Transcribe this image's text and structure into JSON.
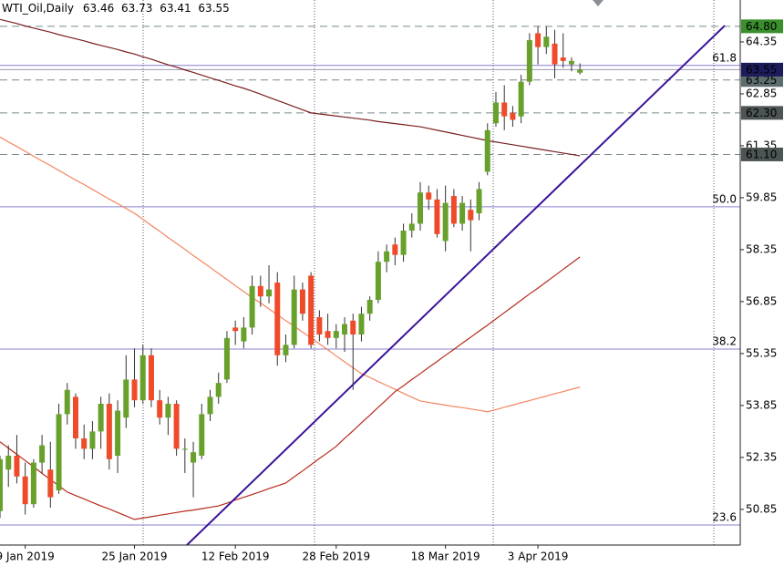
{
  "chart_data": {
    "type": "candlestick",
    "title": "WTI_Oil,Daily",
    "categories": [
      null,
      null,
      null,
      "9 Jan 2019",
      null,
      null,
      null,
      null,
      null,
      null,
      null,
      null,
      null,
      null,
      null,
      null,
      "25 Jan 2019",
      null,
      null,
      null,
      null,
      null,
      null,
      null,
      null,
      null,
      null,
      null,
      "12 Feb 2019",
      null,
      null,
      null,
      null,
      null,
      null,
      null,
      null,
      null,
      null,
      null,
      "28 Feb 2019",
      null,
      null,
      null,
      null,
      null,
      null,
      null,
      null,
      null,
      null,
      null,
      null,
      "18 Mar 2019",
      null,
      null,
      null,
      null,
      null,
      null,
      null,
      null,
      null,
      null,
      "3 Apr 2019",
      null,
      null,
      null,
      null,
      null
    ],
    "open": [
      50.8,
      52.0,
      52.4,
      51.8,
      51.0,
      52.2,
      52.0,
      51.4,
      53.6,
      54.1,
      52.9,
      52.6,
      53.1,
      53.9,
      52.4,
      53.5,
      54.6,
      54.0,
      55.3,
      54.0,
      53.5,
      53.9,
      52.6,
      52.2,
      52.4,
      53.6,
      54.1,
      54.6,
      56.1,
      55.7,
      56.1,
      57.3,
      57.0,
      57.4,
      55.3,
      55.6,
      57.2,
      57.6,
      56.4,
      56.0,
      55.8,
      55.9,
      56.3,
      55.9,
      56.5,
      56.9,
      58.0,
      58.5,
      58.2,
      58.9,
      59.1,
      60.0,
      59.8,
      58.6,
      59.9,
      59.1,
      59.5,
      59.4,
      60.6,
      62.0,
      62.6,
      62.3,
      62.2,
      63.2,
      64.6,
      64.2,
      64.3,
      63.9,
      63.7,
      63.46
    ],
    "high": [
      52.4,
      52.7,
      53.0,
      52.2,
      52.3,
      53.0,
      52.8,
      53.9,
      54.5,
      54.2,
      53.3,
      53.4,
      54.1,
      54.2,
      54.0,
      55.3,
      55.5,
      55.6,
      55.5,
      54.3,
      54.1,
      54.0,
      52.9,
      52.8,
      53.9,
      54.3,
      54.8,
      56.0,
      56.3,
      56.4,
      57.6,
      57.6,
      57.9,
      57.7,
      55.9,
      57.6,
      57.4,
      57.7,
      56.6,
      56.5,
      56.2,
      56.4,
      56.5,
      56.7,
      57.0,
      58.3,
      58.5,
      58.7,
      59.1,
      59.4,
      60.3,
      60.2,
      60.1,
      60.2,
      60.1,
      59.9,
      59.8,
      60.3,
      62.0,
      62.9,
      63.1,
      62.5,
      63.4,
      64.6,
      64.8,
      64.8,
      64.7,
      64.6,
      63.9,
      63.73
    ],
    "low": [
      50.6,
      51.5,
      51.6,
      50.7,
      50.9,
      51.9,
      50.9,
      51.3,
      53.3,
      52.6,
      52.3,
      52.3,
      52.6,
      52.0,
      51.9,
      53.2,
      53.8,
      53.9,
      53.8,
      53.3,
      53.0,
      52.4,
      51.9,
      51.2,
      52.3,
      53.4,
      53.9,
      54.5,
      55.6,
      55.5,
      55.9,
      56.7,
      56.8,
      55.0,
      55.1,
      55.5,
      56.3,
      55.5,
      55.7,
      55.6,
      55.5,
      55.4,
      54.3,
      55.7,
      56.3,
      56.8,
      57.7,
      57.9,
      58.0,
      58.7,
      58.9,
      59.5,
      58.7,
      58.3,
      59.0,
      58.9,
      58.3,
      59.2,
      60.5,
      61.9,
      61.8,
      61.9,
      62.0,
      63.1,
      63.7,
      64.0,
      63.3,
      63.6,
      63.5,
      63.41
    ],
    "close": [
      52.3,
      52.4,
      51.8,
      51.0,
      52.2,
      52.7,
      51.2,
      53.6,
      54.3,
      52.9,
      52.6,
      53.1,
      53.9,
      52.3,
      53.7,
      54.6,
      54.0,
      55.3,
      54.0,
      53.5,
      53.9,
      52.6,
      52.6,
      52.5,
      53.6,
      54.1,
      54.5,
      55.8,
      56.0,
      56.1,
      57.3,
      57.0,
      57.2,
      55.3,
      55.6,
      57.2,
      56.5,
      55.6,
      55.9,
      55.8,
      56.0,
      56.2,
      55.9,
      56.5,
      56.9,
      58.0,
      58.3,
      58.2,
      58.9,
      59.1,
      60.0,
      59.8,
      58.8,
      59.7,
      59.1,
      59.7,
      59.2,
      60.1,
      61.8,
      62.6,
      62.2,
      62.1,
      63.2,
      64.4,
      64.2,
      64.5,
      63.7,
      63.8,
      63.8,
      63.55
    ],
    "up_color": "#67a12c",
    "down_color": "#ef4b2a",
    "moving_averages": [
      {
        "color": "#7a1f1f",
        "values": [
          65.0,
          64.94,
          64.88,
          64.81,
          64.75,
          64.69,
          64.63,
          64.56,
          64.5,
          64.44,
          64.38,
          64.31,
          64.25,
          64.19,
          64.13,
          64.06,
          64.0,
          63.92,
          63.85,
          63.77,
          63.69,
          63.62,
          63.54,
          63.47,
          63.39,
          63.31,
          63.24,
          63.16,
          63.08,
          63.01,
          62.93,
          62.84,
          62.75,
          62.66,
          62.57,
          62.48,
          62.39,
          62.3,
          62.27,
          62.24,
          62.21,
          62.18,
          62.15,
          62.12,
          62.09,
          62.05,
          62.02,
          61.99,
          61.96,
          61.93,
          61.9,
          61.85,
          61.8,
          61.75,
          61.7,
          61.65,
          61.6,
          61.55,
          61.5,
          61.46,
          61.42,
          61.38,
          61.34,
          61.3,
          61.26,
          61.22,
          61.18,
          61.14,
          61.1,
          61.06
        ]
      },
      {
        "color": "#f4845f",
        "values": [
          61.6,
          61.46,
          61.33,
          61.19,
          61.05,
          60.91,
          60.78,
          60.64,
          60.5,
          60.36,
          60.23,
          60.09,
          59.95,
          59.81,
          59.68,
          59.54,
          59.4,
          59.23,
          59.05,
          58.88,
          58.7,
          58.53,
          58.36,
          58.18,
          58.01,
          57.84,
          57.66,
          57.49,
          57.31,
          57.14,
          56.97,
          56.81,
          56.64,
          56.47,
          56.3,
          56.14,
          55.97,
          55.8,
          55.63,
          55.46,
          55.28,
          55.11,
          54.94,
          54.77,
          54.66,
          54.54,
          54.43,
          54.32,
          54.2,
          54.09,
          53.98,
          53.94,
          53.9,
          53.86,
          53.82,
          53.79,
          53.75,
          53.71,
          53.67,
          53.73,
          53.8,
          53.86,
          53.93,
          53.99,
          54.06,
          54.12,
          54.19,
          54.25,
          54.32,
          54.38
        ]
      },
      {
        "color": "#b52a1c",
        "values": [
          52.8,
          52.62,
          52.44,
          52.26,
          52.08,
          51.89,
          51.71,
          51.53,
          51.35,
          51.25,
          51.15,
          51.05,
          50.95,
          50.86,
          50.76,
          50.66,
          50.56,
          50.6,
          50.64,
          50.68,
          50.72,
          50.76,
          50.8,
          50.83,
          50.87,
          50.91,
          50.95,
          51.03,
          51.12,
          51.2,
          51.28,
          51.36,
          51.45,
          51.53,
          51.61,
          51.79,
          51.96,
          52.14,
          52.32,
          52.49,
          52.67,
          52.9,
          53.12,
          53.35,
          53.57,
          53.8,
          54.02,
          54.25,
          54.42,
          54.6,
          54.77,
          54.95,
          55.12,
          55.3,
          55.47,
          55.65,
          55.82,
          56.0,
          56.17,
          56.35,
          56.53,
          56.71,
          56.89,
          57.07,
          57.24,
          57.42,
          57.6,
          57.78,
          57.96,
          58.14
        ]
      }
    ],
    "trendline": {
      "color": "#3b1499",
      "values": [
        49.82,
        64.82
      ]
    },
    "fib_color": "#8a7fd0",
    "fib_levels": [
      {
        "label": "61.8",
        "value": 63.67
      },
      {
        "label": "50.0",
        "value": 59.59
      },
      {
        "label": "38.2",
        "value": 55.48
      },
      {
        "label": "23.6",
        "value": 50.4
      }
    ],
    "levels": [
      {
        "value": 64.8,
        "label": "64.80",
        "color": "#3a8f2c"
      },
      {
        "value": 63.25,
        "label": "63.25",
        "color": "#5d6d6d"
      },
      {
        "value": 62.3,
        "label": "62.30",
        "color": "#4d5454"
      },
      {
        "value": 61.1,
        "label": "61.10",
        "color": "#4d5454"
      }
    ],
    "current_color": "#1c1c5c",
    "ylim": [
      49.82,
      65.56
    ],
    "yticks": [
      64.35,
      62.85,
      61.35,
      59.85,
      58.35,
      56.85,
      55.35,
      53.85,
      52.35,
      50.85
    ]
  }
}
